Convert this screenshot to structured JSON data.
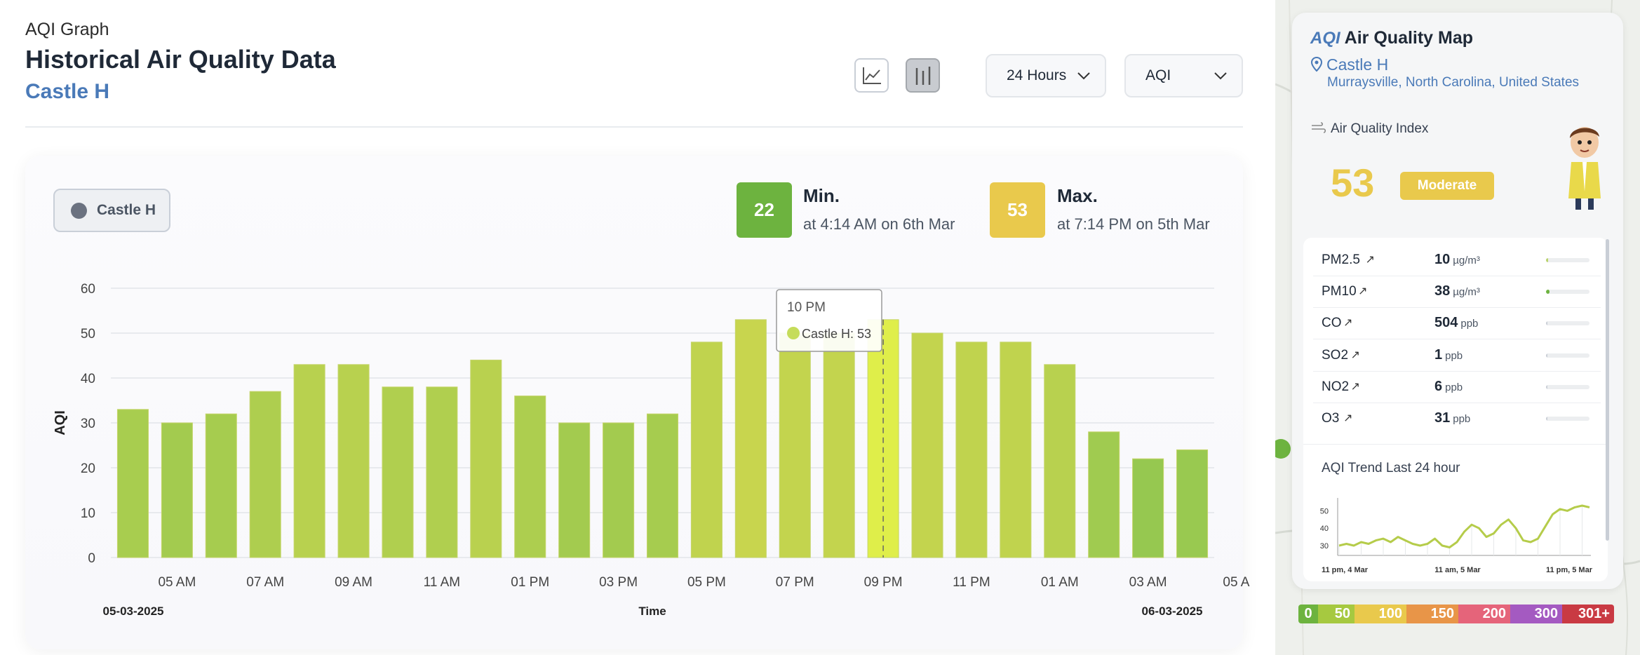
{
  "header": {
    "eyebrow": "AQI Graph",
    "title": "Historical Air Quality Data",
    "location": "Castle H"
  },
  "controls": {
    "range": "24 Hours",
    "metric": "AQI",
    "line_icon": "line-chart-icon",
    "bar_icon": "bar-chart-icon"
  },
  "legend": {
    "label": "Castle H"
  },
  "stats": {
    "min_value": "22",
    "min_label": "Min.",
    "min_sub": "at 4:14 AM on 6th Mar",
    "max_value": "53",
    "max_label": "Max.",
    "max_sub": "at 7:14 PM on 5th Mar",
    "min_color": "#6db33f",
    "max_color": "#e9c94c"
  },
  "tooltip": {
    "title": "10 PM",
    "text": "Castle H: 53"
  },
  "chart_data": {
    "type": "bar",
    "ylabel": "AQI",
    "xlabel": "Time",
    "ylim": [
      0,
      60
    ],
    "yticks": [
      0,
      10,
      20,
      30,
      40,
      50,
      60
    ],
    "grid": true,
    "x_tick_labels": [
      "05 AM",
      "07 AM",
      "09 AM",
      "11 AM",
      "01 PM",
      "03 PM",
      "05 PM",
      "07 PM",
      "09 PM",
      "11 PM",
      "01 AM",
      "03 AM",
      "05 A"
    ],
    "start_date": "05-03-2025",
    "end_date": "06-03-2025",
    "series": [
      {
        "name": "Castle H",
        "values": [
          33,
          30,
          32,
          37,
          43,
          43,
          38,
          38,
          44,
          36,
          30,
          30,
          32,
          48,
          53,
          50,
          50,
          53,
          50,
          48,
          48,
          43,
          28,
          22,
          24
        ]
      }
    ],
    "highlight_index": 17
  },
  "map_panel": {
    "title": "Air Quality Map",
    "logo_text": "AQI",
    "location": "Castle H",
    "address": "Murraysville, North Carolina, United States",
    "aqi_label": "Air Quality Index",
    "aqi_value": "53",
    "status": "Moderate",
    "status_color": "#e9c94c",
    "pollutants": [
      {
        "name": "PM2.5",
        "value": "10",
        "unit": "µg/m³",
        "level": 0.05,
        "color": "#b8d36a"
      },
      {
        "name": "PM10",
        "value": "38",
        "unit": "µg/m³",
        "level": 0.08,
        "color": "#6db33f"
      },
      {
        "name": "CO",
        "value": "504",
        "unit": "ppb",
        "level": 0.02,
        "color": "#c9ced6"
      },
      {
        "name": "SO2",
        "value": "1",
        "unit": "ppb",
        "level": 0.01,
        "color": "#c9ced6"
      },
      {
        "name": "NO2",
        "value": "6",
        "unit": "ppb",
        "level": 0.02,
        "color": "#c9ced6"
      },
      {
        "name": "O3",
        "value": "31",
        "unit": "ppb",
        "level": 0.03,
        "color": "#c9ced6"
      }
    ],
    "trend_title": "AQI Trend Last 24 hour",
    "trend_chart": {
      "type": "line",
      "yticks": [
        30,
        40,
        50
      ],
      "x_labels": [
        "11 pm, 4 Mar",
        "11 am, 5 Mar",
        "11 pm, 5 Mar"
      ],
      "values": [
        30,
        31,
        30,
        32,
        31,
        33,
        34,
        32,
        35,
        33,
        31,
        30,
        31,
        34,
        30,
        29,
        32,
        38,
        42,
        40,
        35,
        37,
        42,
        45,
        40,
        33,
        32,
        34,
        41,
        48,
        51,
        50,
        52,
        53,
        52
      ]
    }
  },
  "scale": {
    "labels": [
      "0",
      "50",
      "100",
      "150",
      "200",
      "300",
      "301+"
    ],
    "colors": [
      "#6db33f",
      "#a6c940",
      "#e9c94c",
      "#e89548",
      "#e5647a",
      "#a45ac1",
      "#c93a43"
    ]
  }
}
